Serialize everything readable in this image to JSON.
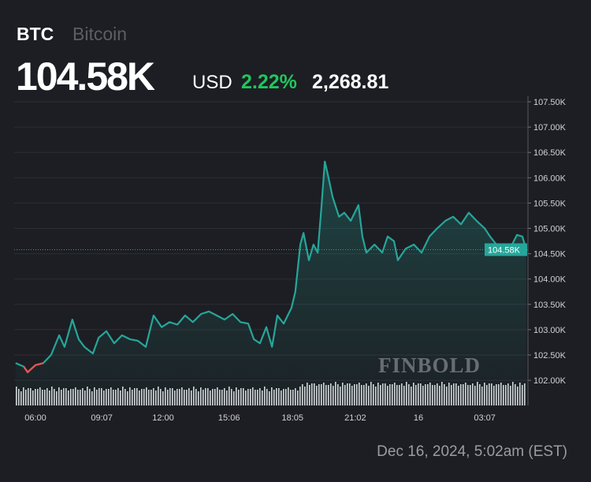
{
  "header": {
    "symbol": "BTC",
    "name": "Bitcoin",
    "price": "104.58K",
    "currency": "USD",
    "change_pct": "2.22%",
    "change_abs": "2,268.81"
  },
  "footer": {
    "date": "Dec 16, 2024, 5:02am (EST)"
  },
  "watermark": "FINBOLD",
  "colors": {
    "up": "#26a69a",
    "down": "#ef5350",
    "pct": "#22c55e",
    "bg": "#1c1e23"
  },
  "chart_data": {
    "type": "line",
    "y_ticks": [
      "107.50K",
      "107.00K",
      "106.50K",
      "106.00K",
      "105.50K",
      "105.00K",
      "104.50K",
      "104.00K",
      "103.50K",
      "103.00K",
      "102.50K",
      "102.00K"
    ],
    "x_ticks": [
      "06:00",
      "09:07",
      "12:00",
      "15:06",
      "18:05",
      "21:02",
      "16",
      "03:07"
    ],
    "ylim": [
      101.8,
      107.6
    ],
    "last_value_label": "104.58K",
    "last_value": 104.58,
    "grid": true,
    "points": [
      [
        "05:04",
        102.34
      ],
      [
        "05:27",
        102.27
      ],
      [
        "05:38",
        102.16
      ],
      [
        "06:00",
        102.3
      ],
      [
        "06:22",
        102.34
      ],
      [
        "06:44",
        102.5
      ],
      [
        "07:07",
        102.89
      ],
      [
        "07:22",
        102.66
      ],
      [
        "07:44",
        103.2
      ],
      [
        "08:02",
        102.81
      ],
      [
        "08:18",
        102.66
      ],
      [
        "08:42",
        102.53
      ],
      [
        "08:58",
        102.84
      ],
      [
        "09:20",
        102.97
      ],
      [
        "09:42",
        102.73
      ],
      [
        "10:04",
        102.89
      ],
      [
        "10:27",
        102.81
      ],
      [
        "10:49",
        102.78
      ],
      [
        "11:11",
        102.66
      ],
      [
        "11:33",
        103.28
      ],
      [
        "11:56",
        103.05
      ],
      [
        "12:18",
        103.15
      ],
      [
        "12:40",
        103.1
      ],
      [
        "13:02",
        103.28
      ],
      [
        "13:24",
        103.15
      ],
      [
        "13:47",
        103.31
      ],
      [
        "14:09",
        103.36
      ],
      [
        "14:31",
        103.28
      ],
      [
        "14:53",
        103.2
      ],
      [
        "15:16",
        103.31
      ],
      [
        "15:38",
        103.15
      ],
      [
        "16:00",
        103.12
      ],
      [
        "16:16",
        102.81
      ],
      [
        "16:33",
        102.73
      ],
      [
        "16:51",
        103.05
      ],
      [
        "17:07",
        102.66
      ],
      [
        "17:22",
        103.28
      ],
      [
        "17:40",
        103.12
      ],
      [
        "18:02",
        103.43
      ],
      [
        "18:13",
        103.75
      ],
      [
        "18:27",
        104.68
      ],
      [
        "18:36",
        104.91
      ],
      [
        "18:51",
        104.37
      ],
      [
        "19:04",
        104.68
      ],
      [
        "19:16",
        104.52
      ],
      [
        "19:27",
        105.46
      ],
      [
        "19:36",
        106.32
      ],
      [
        "19:44",
        106.08
      ],
      [
        "19:58",
        105.62
      ],
      [
        "20:16",
        105.23
      ],
      [
        "20:31",
        105.31
      ],
      [
        "20:49",
        105.15
      ],
      [
        "21:11",
        105.46
      ],
      [
        "21:22",
        104.84
      ],
      [
        "21:33",
        104.52
      ],
      [
        "21:56",
        104.68
      ],
      [
        "22:18",
        104.52
      ],
      [
        "22:33",
        104.84
      ],
      [
        "22:51",
        104.75
      ],
      [
        "23:02",
        104.37
      ],
      [
        "23:24",
        104.6
      ],
      [
        "23:47",
        104.68
      ],
      [
        "00:09",
        104.52
      ],
      [
        "00:31",
        104.84
      ],
      [
        "00:53",
        105.0
      ],
      [
        "01:16",
        105.15
      ],
      [
        "01:38",
        105.23
      ],
      [
        "02:00",
        105.08
      ],
      [
        "02:22",
        105.31
      ],
      [
        "02:44",
        105.15
      ],
      [
        "03:07",
        105.0
      ],
      [
        "03:22",
        104.84
      ],
      [
        "03:40",
        104.68
      ],
      [
        "04:02",
        104.52
      ],
      [
        "04:24",
        104.68
      ],
      [
        "04:38",
        104.87
      ],
      [
        "04:53",
        104.84
      ],
      [
        "05:04",
        104.58
      ]
    ]
  }
}
